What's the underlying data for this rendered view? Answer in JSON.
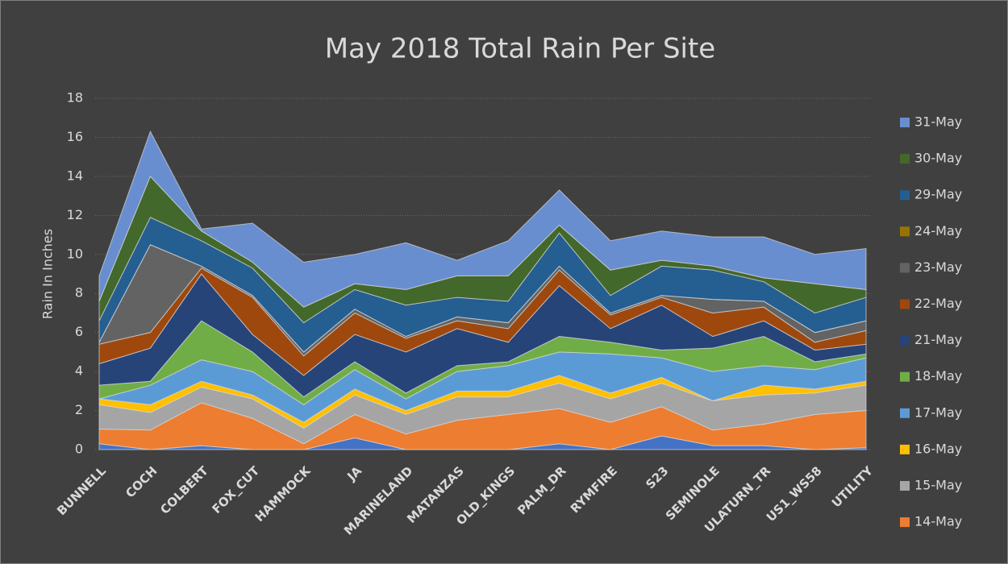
{
  "chart_data": {
    "type": "stacked_area",
    "title": "May 2018 Total Rain Per Site",
    "y_label": "Rain In Inches",
    "categories": [
      "BUNNELL",
      "COCH",
      "COLBERT",
      "FOX_CUT",
      "HAMMOCK",
      "JA",
      "MARINELAND",
      "MATANZAS",
      "OLD_KINGS",
      "PALM_DR",
      "RYMFIRE",
      "S23",
      "SEMINOLE",
      "ULATURN_TR",
      "US1_WS58",
      "UTILITY"
    ],
    "ylim": [
      0,
      18
    ],
    "yticks": [
      0,
      2,
      4,
      6,
      8,
      10,
      12,
      14,
      16,
      18
    ],
    "grid": true,
    "legend": "right",
    "series": [
      {
        "color": "#4472c4",
        "values": [
          0.3,
          0,
          0.2,
          0,
          0,
          0.6,
          0,
          0,
          0,
          0.3,
          0,
          0.7,
          0.2,
          0.2,
          0,
          0.1
        ]
      },
      {
        "name": "14-May",
        "color": "#ed7d31",
        "values": [
          0.75,
          1.0,
          2.2,
          1.6,
          0.3,
          1.2,
          0.8,
          1.5,
          1.8,
          1.8,
          1.4,
          1.5,
          0.8,
          1.1,
          1.8,
          1.9
        ]
      },
      {
        "name": "15-May",
        "color": "#a5a5a5",
        "values": [
          1.25,
          0.9,
          0.8,
          1.0,
          0.8,
          1.0,
          1.0,
          1.2,
          0.9,
          1.3,
          1.2,
          1.2,
          1.5,
          1.5,
          1.1,
          1.3
        ]
      },
      {
        "name": "16-May",
        "color": "#ffc000",
        "values": [
          0.3,
          0.4,
          0.3,
          0.2,
          0.3,
          0.3,
          0.2,
          0.3,
          0.3,
          0.4,
          0.3,
          0.3,
          0,
          0.5,
          0.2,
          0.2
        ]
      },
      {
        "name": "17-May",
        "color": "#5b9bd5",
        "values": [
          0,
          1.0,
          1.1,
          1.2,
          0.9,
          1.0,
          0.6,
          1.0,
          1.3,
          1.2,
          2.0,
          1.0,
          1.5,
          1.0,
          1.0,
          1.2
        ]
      },
      {
        "name": "18-May",
        "color": "#70ad47",
        "values": [
          0.7,
          0.2,
          2.0,
          1.0,
          0.4,
          0.4,
          0.3,
          0.3,
          0.2,
          0.8,
          0.6,
          0.4,
          1.2,
          1.5,
          0.4,
          0.2
        ]
      },
      {
        "name": "21-May",
        "color": "#264478",
        "values": [
          1.1,
          1.7,
          2.4,
          0.9,
          1.1,
          1.4,
          2.1,
          1.9,
          1.0,
          2.6,
          0.7,
          2.3,
          0.6,
          0.8,
          0.6,
          0.5
        ]
      },
      {
        "name": "22-May",
        "color": "#9e480e",
        "values": [
          1.0,
          0.8,
          0.3,
          1.9,
          1.0,
          1.1,
          0.7,
          0.4,
          0.7,
          0.8,
          0.7,
          0.4,
          1.2,
          0.7,
          0.4,
          0.7
        ]
      },
      {
        "name": "23-May",
        "color": "#636363",
        "values": [
          0.1,
          4.5,
          0.1,
          0.1,
          0.2,
          0.2,
          0.1,
          0.2,
          0.3,
          0.2,
          0.1,
          0.1,
          0.7,
          0.3,
          0.5,
          0.5
        ]
      },
      {
        "name": "24-May",
        "color": "#997300",
        "values": [
          0,
          0,
          0,
          0,
          0,
          0,
          0,
          0,
          0,
          0,
          0,
          0,
          0,
          0,
          0,
          0
        ]
      },
      {
        "name": "29-May",
        "color": "#255e91",
        "values": [
          1.1,
          1.4,
          1.3,
          1.4,
          1.5,
          1.0,
          1.6,
          1.0,
          1.1,
          1.7,
          0.9,
          1.5,
          1.5,
          1.0,
          1.0,
          1.2
        ]
      },
      {
        "name": "30-May",
        "color": "#43682b",
        "values": [
          1.0,
          2.1,
          0.5,
          0.3,
          0.8,
          0.3,
          0.8,
          1.1,
          1.3,
          0.4,
          1.3,
          0.3,
          0.2,
          0.2,
          1.5,
          0.4
        ]
      },
      {
        "name": "31-May",
        "color": "#698ed0",
        "values": [
          1.3,
          2.3,
          0.1,
          2.0,
          2.3,
          1.5,
          2.4,
          0.8,
          1.8,
          1.8,
          1.5,
          1.5,
          1.5,
          2.1,
          1.5,
          2.1
        ]
      }
    ]
  }
}
